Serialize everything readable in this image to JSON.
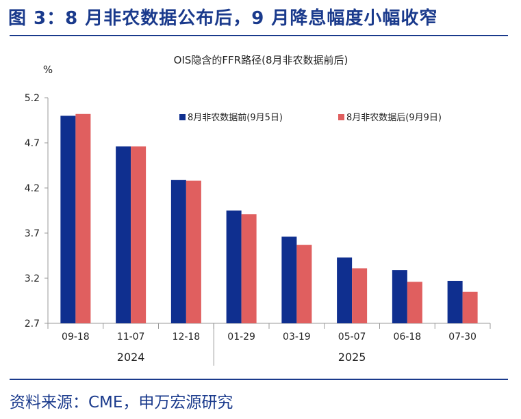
{
  "figure": {
    "heading": "图 3：8 月非农数据公布后，9 月降息幅度小幅收窄",
    "source": "资料来源：CME，申万宏源研究"
  },
  "chart_data": {
    "type": "bar",
    "title": "OIS隐含的FFR路径(8月非农数据前后)",
    "y_unit": "%",
    "ylim": [
      2.7,
      5.2
    ],
    "y_ticks": [
      "5.2",
      "4.7",
      "4.2",
      "3.7",
      "3.2",
      "2.7"
    ],
    "categories": [
      "09-18",
      "11-07",
      "12-18",
      "01-29",
      "03-19",
      "05-07",
      "06-18",
      "07-30"
    ],
    "year_groups": [
      {
        "label": "2024",
        "categories": [
          "09-18",
          "11-07",
          "12-18"
        ]
      },
      {
        "label": "2025",
        "categories": [
          "01-29",
          "03-19",
          "05-07",
          "06-18",
          "07-30"
        ]
      }
    ],
    "series": [
      {
        "name": "8月非农数据前(9月5日)",
        "color": "#0f2f8f",
        "values": [
          5.0,
          4.66,
          4.29,
          3.95,
          3.66,
          3.43,
          3.29,
          3.17
        ]
      },
      {
        "name": "8月非农数据后(9月9日)",
        "color": "#e05f5f",
        "values": [
          5.02,
          4.66,
          4.28,
          3.91,
          3.57,
          3.31,
          3.16,
          3.05
        ]
      }
    ],
    "legend_position": "top-right",
    "grid": false
  }
}
